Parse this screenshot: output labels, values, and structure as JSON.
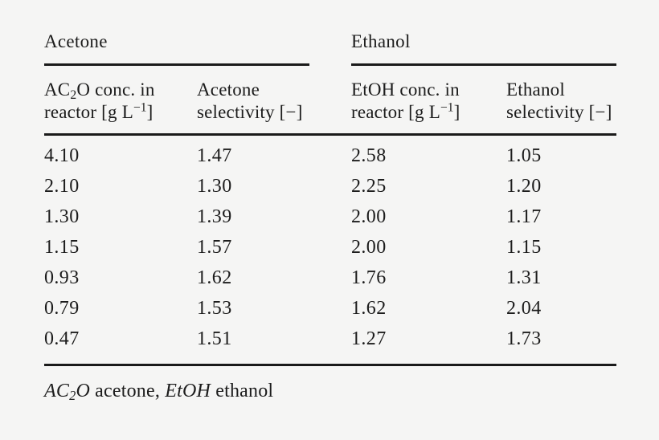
{
  "page": {
    "background_color": "#f5f5f4",
    "text_color": "#1c1c1c",
    "rule_color": "#1a1a1a"
  },
  "table": {
    "groups": [
      {
        "label": "Acetone"
      },
      {
        "label": "Ethanol"
      }
    ],
    "columns": [
      {
        "line1_pre": "AC",
        "line1_sub": "2",
        "line1_post": "O conc. in",
        "line2_pre": "reactor [g L",
        "line2_sup": "−1",
        "line2_post": "]"
      },
      {
        "line1_pre": "Acetone",
        "line2_pre": "selectivity [−]"
      },
      {
        "line1_pre": "EtOH conc. in",
        "line2_pre": "reactor [g L",
        "line2_sup": "−1",
        "line2_post": "]"
      },
      {
        "line1_pre": "Ethanol",
        "line2_pre": "selectivity [−]"
      }
    ],
    "rows": [
      [
        "4.10",
        "1.47",
        "2.58",
        "1.05"
      ],
      [
        "2.10",
        "1.30",
        "2.25",
        "1.20"
      ],
      [
        "1.30",
        "1.39",
        "2.00",
        "1.17"
      ],
      [
        "1.15",
        "1.57",
        "2.00",
        "1.15"
      ],
      [
        "0.93",
        "1.62",
        "1.76",
        "1.31"
      ],
      [
        "0.79",
        "1.53",
        "1.62",
        "2.04"
      ],
      [
        "0.47",
        "1.51",
        "1.27",
        "1.73"
      ]
    ],
    "footnote": {
      "abbr1_pre": "AC",
      "abbr1_sub": "2",
      "abbr1_post": "O",
      "desc1": " acetone, ",
      "abbr2": "EtOH",
      "desc2": " ethanol"
    }
  }
}
